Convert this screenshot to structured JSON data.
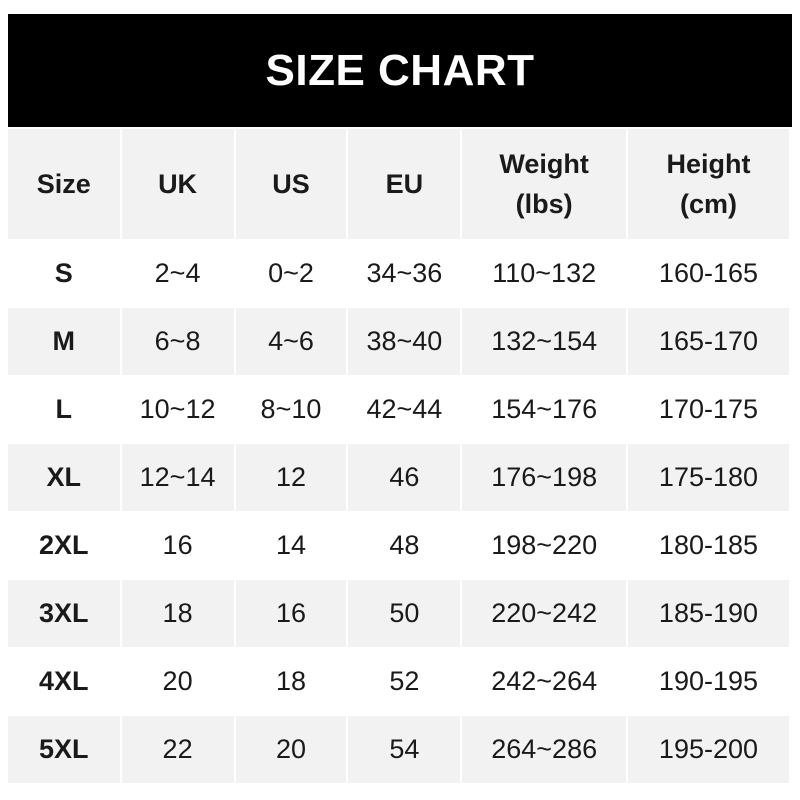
{
  "title": "SIZE CHART",
  "headers": [
    {
      "line1": "Size",
      "line2": ""
    },
    {
      "line1": "UK",
      "line2": ""
    },
    {
      "line1": "US",
      "line2": ""
    },
    {
      "line1": "EU",
      "line2": ""
    },
    {
      "line1": "Weight",
      "line2": "(lbs)"
    },
    {
      "line1": "Height",
      "line2": "(cm)"
    }
  ],
  "rows": [
    [
      "S",
      "2~4",
      "0~2",
      "34~36",
      "110~132",
      "160-165"
    ],
    [
      "M",
      "6~8",
      "4~6",
      "38~40",
      "132~154",
      "165-170"
    ],
    [
      "L",
      "10~12",
      "8~10",
      "42~44",
      "154~176",
      "170-175"
    ],
    [
      "XL",
      "12~14",
      "12",
      "46",
      "176~198",
      "175-180"
    ],
    [
      "2XL",
      "16",
      "14",
      "48",
      "198~220",
      "180-185"
    ],
    [
      "3XL",
      "18",
      "16",
      "50",
      "220~242",
      "185-190"
    ],
    [
      "4XL",
      "20",
      "18",
      "52",
      "242~264",
      "190-195"
    ],
    [
      "5XL",
      "22",
      "20",
      "54",
      "264~286",
      "195-200"
    ]
  ],
  "colors": {
    "banner": "#000000",
    "header_bg": "#f2f2f2",
    "alt_row_bg": "#f2f2f2",
    "text": "#1a1a1a"
  }
}
